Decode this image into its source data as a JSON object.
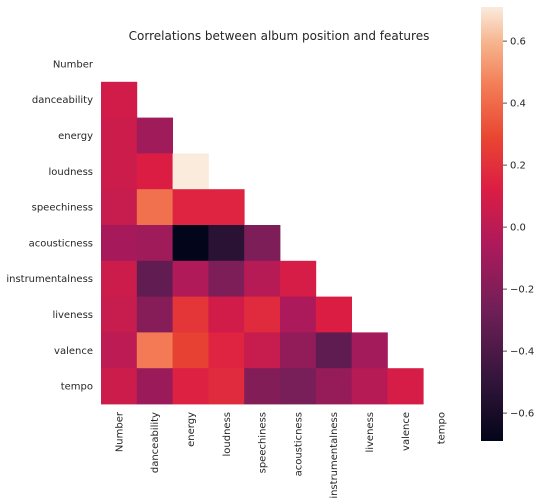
{
  "chart_data": {
    "type": "heatmap",
    "title": "Correlations between album position and features",
    "variables": [
      "Number",
      "danceability",
      "energy",
      "loudness",
      "speechiness",
      "acousticness",
      "instrumentalness",
      "liveness",
      "valence",
      "tempo"
    ],
    "mask": "upper-triangle-including-diagonal",
    "matrix": [
      [
        null,
        null,
        null,
        null,
        null,
        null,
        null,
        null,
        null,
        null
      ],
      [
        0.08,
        null,
        null,
        null,
        null,
        null,
        null,
        null,
        null,
        null
      ],
      [
        0.06,
        -0.1,
        null,
        null,
        null,
        null,
        null,
        null,
        null,
        null
      ],
      [
        0.06,
        0.12,
        0.71,
        null,
        null,
        null,
        null,
        null,
        null,
        null
      ],
      [
        0.04,
        0.42,
        0.15,
        0.15,
        null,
        null,
        null,
        null,
        null,
        null
      ],
      [
        -0.08,
        -0.1,
        -0.69,
        -0.53,
        -0.22,
        null,
        null,
        null,
        null,
        null
      ],
      [
        0.06,
        -0.32,
        -0.04,
        -0.22,
        -0.02,
        0.1,
        null,
        null,
        null,
        null
      ],
      [
        0.04,
        -0.19,
        0.22,
        0.08,
        0.18,
        -0.06,
        0.12,
        null,
        null,
        null
      ],
      [
        0.0,
        0.45,
        0.27,
        0.15,
        0.04,
        -0.15,
        -0.33,
        -0.09,
        null,
        null
      ],
      [
        0.06,
        -0.12,
        0.14,
        0.18,
        -0.2,
        -0.24,
        -0.14,
        -0.02,
        0.1,
        null
      ]
    ],
    "colorbar": {
      "min": -0.69,
      "max": 0.71,
      "ticks": [
        0.6,
        0.4,
        0.2,
        0.0,
        -0.2,
        -0.4,
        -0.6
      ],
      "tick_labels": [
        "0.6",
        "0.4",
        "0.2",
        "0.0",
        "−0.2",
        "−0.4",
        "−0.6"
      ],
      "colormap": "rocket"
    },
    "grid": false,
    "legend": "colorbar-right"
  }
}
